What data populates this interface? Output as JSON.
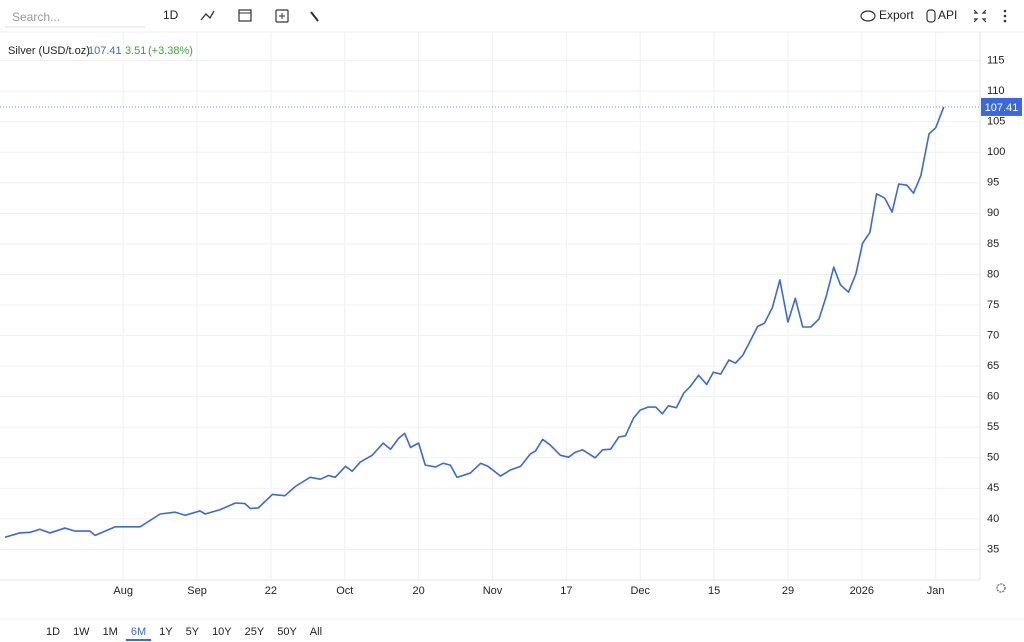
{
  "toolbar": {
    "search": "Search...",
    "interval": "1D",
    "export": "Export",
    "api": "API"
  },
  "chart_data": {
    "type": "line",
    "title": "Silver (USD/t.oz)",
    "change": "3.51",
    "change_pct": "(+3.38%)",
    "series": [
      {
        "name": "Silver",
        "color": "#3b68df",
        "x": [
          0,
          2,
          3.4,
          4.7,
          6.1,
          8.1,
          9.5,
          11.5,
          12.2,
          14.9,
          16.3,
          18.3,
          21,
          23,
          24.4,
          26.4,
          27.1,
          29.1,
          31.2,
          32.5,
          33.2,
          34.3,
          36.2,
          37.9,
          39.3,
          41.3,
          42.7,
          43.8,
          44.7,
          46.1,
          47,
          48.1,
          49.7,
          51.2,
          52.2,
          53.3,
          54.1,
          54.9,
          56,
          56.9,
          58.3,
          59.3,
          60.3,
          61.2,
          63,
          64.4,
          65.4,
          67.1,
          68.4,
          69.8,
          71.1,
          71.8,
          72.8,
          73.8,
          75.2,
          76.3,
          77.2,
          78.2,
          79.9,
          80.9,
          82,
          83.1,
          84,
          85.1,
          86,
          87.1,
          88.1,
          89,
          89.8,
          90.9,
          91.9,
          92.8,
          93.9,
          95,
          95.9,
          96.9,
          98,
          98.9,
          99.9,
          100.8,
          101.9,
          102.8,
          103.9,
          104.9,
          106,
          107,
          108,
          109.1,
          110.2,
          111.2,
          112.2,
          113.1,
          114.2,
          115.2,
          116.1,
          117.1,
          118,
          119.1,
          120.1,
          121,
          122.1,
          123,
          124,
          125.1,
          126,
          127.1
        ],
        "values": [
          37.0,
          37.7,
          37.8,
          38.3,
          37.7,
          38.5,
          38.0,
          38.0,
          37.3,
          38.7,
          38.7,
          38.7,
          40.8,
          41.1,
          40.6,
          41.3,
          40.8,
          41.5,
          42.6,
          42.5,
          41.7,
          41.8,
          44.0,
          43.8,
          45.3,
          46.8,
          46.5,
          47.1,
          46.8,
          48.6,
          47.8,
          49.3,
          50.4,
          52.4,
          51.4,
          53.2,
          54.0,
          51.7,
          52.4,
          48.8,
          48.5,
          49.1,
          48.8,
          46.8,
          47.5,
          49.1,
          48.6,
          47.0,
          48.0,
          48.6,
          50.6,
          51.1,
          53.0,
          52.1,
          50.4,
          50.1,
          50.9,
          51.3,
          50.0,
          51.3,
          51.4,
          53.4,
          53.6,
          56.5,
          57.8,
          58.3,
          58.3,
          57.2,
          58.5,
          58.2,
          60.6,
          61.7,
          63.5,
          62.0,
          64.0,
          63.7,
          66.0,
          65.5,
          66.8,
          68.9,
          71.5,
          72.0,
          74.6,
          79.1,
          72.2,
          76.1,
          71.4,
          71.4,
          72.7,
          76.5,
          81.2,
          78.3,
          77.1,
          80.1,
          85.1,
          86.9,
          93.2,
          92.5,
          90.2,
          94.8,
          94.6,
          93.3,
          96.2,
          103.0,
          104.0,
          107.41
        ]
      }
    ],
    "xlim": [
      0,
      132
    ],
    "xticks": [
      {
        "value": 16,
        "label": "Aug"
      },
      {
        "value": 26,
        "label": "Sep"
      },
      {
        "value": 36,
        "label": "22"
      },
      {
        "value": 46,
        "label": "Oct"
      },
      {
        "value": 56,
        "label": "20"
      },
      {
        "value": 66,
        "label": "Nov"
      },
      {
        "value": 76,
        "label": "17"
      },
      {
        "value": 86,
        "label": "Dec"
      },
      {
        "value": 96,
        "label": "15"
      },
      {
        "value": 106,
        "label": "29"
      },
      {
        "value": 116,
        "label": "2026"
      },
      {
        "value": 126,
        "label": "Jan"
      }
    ],
    "ylim": [
      30,
      120
    ],
    "yticks": [
      35,
      40,
      45,
      50,
      55,
      60,
      65,
      70,
      75,
      80,
      85,
      90,
      95,
      100,
      105,
      110,
      115
    ],
    "grid": true
  },
  "ranges": {
    "buttons": [
      "1D",
      "1W",
      "1M",
      "6M",
      "1Y",
      "5Y",
      "10Y",
      "25Y",
      "50Y",
      "All"
    ],
    "active": 3
  }
}
